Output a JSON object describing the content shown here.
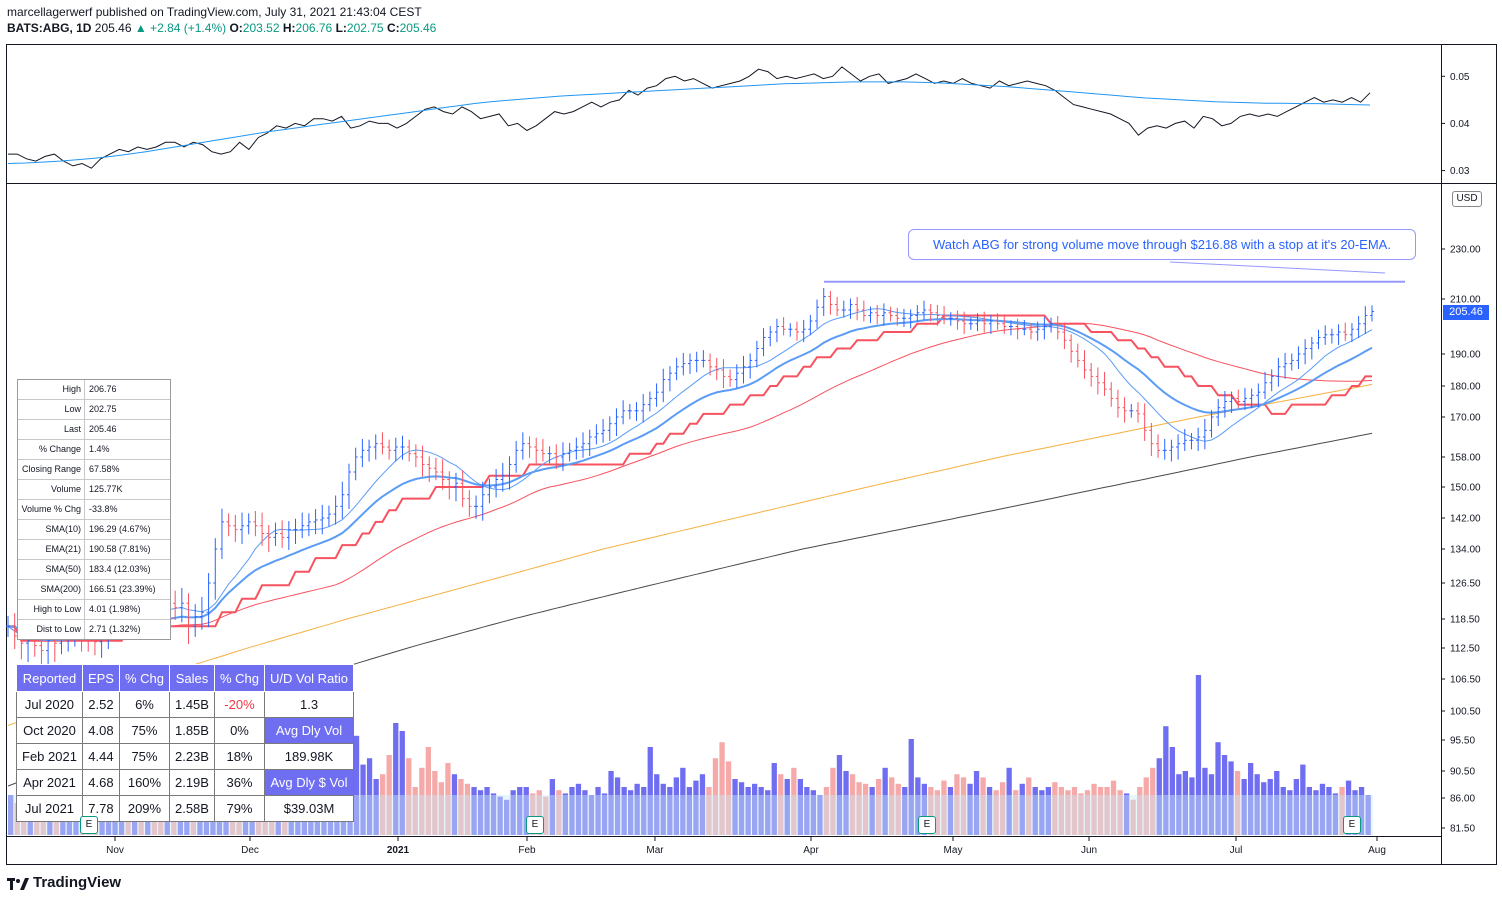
{
  "header": {
    "line1": "marcellagerwerf published on TradingView.com, July 31, 2021 21:43:04 CEST",
    "symbol": "BATS:ABG, 1D",
    "last": "205.46",
    "change": "▲ +2.84 (+1.4%)",
    "open_label": "O:",
    "open": "203.52",
    "high_label": "H:",
    "high": "206.76",
    "low_label": "L:",
    "low": "202.75",
    "close_label": "C:",
    "close": "205.46"
  },
  "stats_panel": [
    {
      "label": "High",
      "value": "206.76"
    },
    {
      "label": "Low",
      "value": "202.75"
    },
    {
      "label": "Last",
      "value": "205.46"
    },
    {
      "label": "% Change",
      "value": "1.4%"
    },
    {
      "label": "Closing Range",
      "value": "67.58%"
    },
    {
      "label": "Volume",
      "value": "125.77K"
    },
    {
      "label": "Volume % Chg",
      "value": "-33.8%"
    },
    {
      "label": "SMA(10)",
      "value": "196.29 (4.67%)"
    },
    {
      "label": "EMA(21)",
      "value": "190.58 (7.81%)"
    },
    {
      "label": "SMA(50)",
      "value": "183.4 (12.03%)"
    },
    {
      "label": "SMA(200)",
      "value": "166.51 (23.39%)"
    },
    {
      "label": "High to Low",
      "value": "4.01 (1.98%)"
    },
    {
      "label": "Dist to Low",
      "value": "2.71 (1.32%)"
    }
  ],
  "earnings_table": {
    "headers": [
      "Reported",
      "EPS",
      "% Chg",
      "Sales",
      "% Chg",
      "U/D Vol Ratio"
    ],
    "rows": [
      [
        "Jul 2020",
        "2.52",
        "6%",
        "1.45B",
        "-20%",
        "1.3"
      ],
      [
        "Oct 2020",
        "4.08",
        "75%",
        "1.85B",
        "0%",
        "Avg Dly Vol"
      ],
      [
        "Feb 2021",
        "4.44",
        "75%",
        "2.23B",
        "18%",
        "189.98K"
      ],
      [
        "Apr 2021",
        "4.68",
        "160%",
        "2.19B",
        "36%",
        "Avg Dly $ Vol"
      ],
      [
        "Jul 2021",
        "7.78",
        "209%",
        "2.58B",
        "79%",
        "$39.03M"
      ]
    ]
  },
  "annotation": "Watch ABG for strong volume move through $216.88 with a stop at it's 20-EMA.",
  "currency_badge": "USD",
  "price_tag": "205.46",
  "earnings_badge": "E",
  "brand": "TradingView",
  "colors": {
    "up": "#2962ff",
    "down": "#f7525f",
    "ema_fast": "#5b9cf6",
    "rs_line": "#f7525f",
    "sma150": "#f5b041",
    "sma200": "#4a4a4a",
    "rs_avg": "#2196f3",
    "vol_up": "#6f6ef0",
    "vol_down": "#f5a9a9"
  },
  "chart_data": [
    {
      "type": "line",
      "title": "Ratio panel",
      "y_ticks": [
        "0.05",
        "0.04",
        "0.03"
      ],
      "ylim": [
        0.028,
        0.056
      ],
      "series": [],
      "ratio_points": [
        0.0335,
        0.0335,
        0.0325,
        0.032,
        0.033,
        0.0335,
        0.032,
        0.031,
        0.0315,
        0.0305,
        0.0325,
        0.0335,
        0.0345,
        0.034,
        0.035,
        0.0345,
        0.035,
        0.036,
        0.036,
        0.035,
        0.036,
        0.0355,
        0.034,
        0.0335,
        0.034,
        0.036,
        0.0345,
        0.037,
        0.038,
        0.0395,
        0.039,
        0.04,
        0.0395,
        0.041,
        0.041,
        0.0405,
        0.0415,
        0.039,
        0.0395,
        0.0405,
        0.04,
        0.04,
        0.039,
        0.04,
        0.0415,
        0.043,
        0.0435,
        0.0425,
        0.042,
        0.0435,
        0.0425,
        0.041,
        0.0415,
        0.042,
        0.0395,
        0.04,
        0.0385,
        0.0395,
        0.041,
        0.0425,
        0.042,
        0.0425,
        0.0435,
        0.0445,
        0.0435,
        0.0445,
        0.045,
        0.047,
        0.046,
        0.0475,
        0.048,
        0.0495,
        0.05,
        0.049,
        0.0495,
        0.0485,
        0.0475,
        0.048,
        0.0485,
        0.049,
        0.05,
        0.0515,
        0.051,
        0.0495,
        0.05,
        0.0495,
        0.05,
        0.0505,
        0.0495,
        0.05,
        0.052,
        0.0505,
        0.049,
        0.05,
        0.0505,
        0.0485,
        0.049,
        0.0495,
        0.0505,
        0.0495,
        0.0485,
        0.049,
        0.0485,
        0.0495,
        0.0485,
        0.048,
        0.0475,
        0.049,
        0.048,
        0.0485,
        0.049,
        0.0485,
        0.048,
        0.047,
        0.0455,
        0.044,
        0.0435,
        0.043,
        0.0425,
        0.042,
        0.041,
        0.04,
        0.0375,
        0.039,
        0.0395,
        0.039,
        0.04,
        0.0405,
        0.039,
        0.0415,
        0.041,
        0.0395,
        0.04,
        0.0415,
        0.042,
        0.0415,
        0.042,
        0.0415,
        0.0425,
        0.0435,
        0.0445,
        0.0455,
        0.0445,
        0.045,
        0.0445,
        0.0455,
        0.0445,
        0.0465
      ],
      "ratio_ma": [
        0.0315,
        0.0316,
        0.0318,
        0.032,
        0.0323,
        0.0326,
        0.033,
        0.0335,
        0.034,
        0.0346,
        0.0352,
        0.0358,
        0.0364,
        0.037,
        0.0376,
        0.0382,
        0.0387,
        0.0392,
        0.0397,
        0.0402,
        0.0407,
        0.0412,
        0.0417,
        0.0422,
        0.0427,
        0.0432,
        0.0437,
        0.0442,
        0.0446,
        0.0449,
        0.0452,
        0.0455,
        0.0458,
        0.046,
        0.0462,
        0.0464,
        0.0466,
        0.0468,
        0.047,
        0.0472,
        0.0474,
        0.0476,
        0.0478,
        0.048,
        0.0482,
        0.0484,
        0.0485,
        0.0486,
        0.0487,
        0.0488,
        0.0488,
        0.0488,
        0.0488,
        0.0487,
        0.0486,
        0.0484,
        0.0482,
        0.048,
        0.0478,
        0.0475,
        0.0472,
        0.0469,
        0.0466,
        0.0463,
        0.046,
        0.0457,
        0.0454,
        0.0452,
        0.045,
        0.0448,
        0.0446,
        0.0445,
        0.0444,
        0.0443,
        0.0443,
        0.0442,
        0.0442,
        0.0441,
        0.044,
        0.0439
      ]
    },
    {
      "type": "line",
      "title": "Price panel (bars with moving averages)",
      "y_ticks": [
        "230.00",
        "210.00",
        "190.00",
        "180.00",
        "170.00",
        "158.00",
        "150.00",
        "142.00",
        "134.00",
        "126.50",
        "118.50",
        "112.50",
        "106.50",
        "100.50",
        "95.50",
        "90.50",
        "86.00",
        "81.50"
      ],
      "x_ticks": [
        "Nov",
        "Dec",
        "2021",
        "Feb",
        "Mar",
        "Apr",
        "May",
        "Jun",
        "Jul",
        "Aug"
      ],
      "ylim": [
        79,
        245
      ],
      "resistance_level": 216.88,
      "closes": [
        117,
        115,
        113.5,
        114,
        113,
        112,
        114,
        113.5,
        114.5,
        116,
        116.5,
        115.5,
        114,
        113.8,
        116,
        118,
        120,
        122,
        121,
        122.5,
        120.5,
        121.5,
        120,
        118,
        122,
        121,
        122,
        117,
        119,
        120,
        126.5,
        134,
        141,
        140,
        139,
        140,
        141,
        140,
        138,
        137,
        138,
        137,
        139,
        139,
        140,
        141,
        141.5,
        142,
        143,
        145,
        148,
        154,
        158,
        160,
        161,
        162,
        161,
        160,
        161,
        161,
        159,
        158,
        156,
        155,
        154,
        152,
        150,
        151,
        147,
        145,
        145,
        148,
        150,
        152,
        153,
        156,
        160,
        162,
        161,
        160,
        159,
        159,
        158,
        159,
        160,
        161,
        162,
        164,
        165,
        166,
        168,
        170,
        172,
        172,
        172,
        174,
        176,
        178,
        182,
        184,
        186,
        187,
        188,
        188,
        188,
        186,
        185,
        183,
        182,
        184,
        186,
        188,
        192,
        196,
        198,
        200,
        199,
        199,
        198,
        199,
        202,
        207,
        211,
        208,
        206,
        206,
        208,
        206,
        204,
        205,
        204,
        205,
        204,
        203,
        203,
        204,
        205,
        206,
        205,
        204,
        203,
        203,
        202,
        201,
        201,
        202,
        201,
        202,
        201,
        200,
        200,
        199,
        199,
        198,
        199,
        200,
        201,
        198,
        195,
        191,
        188,
        185,
        183,
        181,
        179,
        176,
        173,
        172,
        172,
        171,
        166,
        162,
        160,
        160,
        161,
        162,
        163,
        163,
        164,
        166,
        170,
        173,
        175,
        176,
        175,
        176,
        177,
        178,
        181,
        183,
        186,
        187,
        188,
        190,
        192,
        194,
        196,
        197,
        197,
        198,
        197,
        199,
        201,
        204,
        205.46
      ],
      "ema21_end": 190.58,
      "sma10_end": 196.29,
      "sma50_end": 183.4,
      "sma200_end": 166.51
    },
    {
      "type": "bar",
      "title": "Volume",
      "values": [
        0.25,
        0.2,
        0.22,
        0.3,
        0.18,
        0.28,
        0.25,
        0.22,
        0.2,
        0.26,
        0.3,
        0.22,
        0.24,
        0.28,
        0.21,
        0.26,
        0.3,
        0.34,
        0.28,
        0.24,
        0.26,
        0.33,
        0.27,
        0.25,
        0.22,
        0.28,
        0.3,
        0.26,
        0.4,
        0.38,
        0.3,
        0.28,
        0.26,
        0.3,
        0.27,
        0.29,
        0.26,
        0.24,
        0.26,
        0.28,
        0.3,
        0.26,
        0.28,
        0.32,
        0.3,
        0.38,
        0.28,
        0.26,
        0.29,
        0.3,
        0.35,
        0.42,
        0.52,
        0.62,
        0.44,
        0.48,
        0.35,
        0.38,
        0.5,
        0.7,
        0.65,
        0.48,
        0.3,
        0.42,
        0.55,
        0.4,
        0.33,
        0.45,
        0.38,
        0.35,
        0.32,
        0.3,
        0.28,
        0.3,
        0.26,
        0.24,
        0.22,
        0.28,
        0.3,
        0.3,
        0.26,
        0.28,
        0.24,
        0.35,
        0.28,
        0.26,
        0.3,
        0.32,
        0.28,
        0.25,
        0.3,
        0.26,
        0.4,
        0.36,
        0.3,
        0.28,
        0.32,
        0.3,
        0.55,
        0.38,
        0.32,
        0.3,
        0.36,
        0.42,
        0.3,
        0.34,
        0.38,
        0.3,
        0.48,
        0.58,
        0.46,
        0.35,
        0.33,
        0.3,
        0.32,
        0.3,
        0.28,
        0.45,
        0.38,
        0.35,
        0.42,
        0.35,
        0.3,
        0.28,
        0.25,
        0.3,
        0.42,
        0.5,
        0.4,
        0.38,
        0.33,
        0.32,
        0.3,
        0.35,
        0.42,
        0.36,
        0.32,
        0.3,
        0.6,
        0.36,
        0.32,
        0.3,
        0.28,
        0.34,
        0.3,
        0.38,
        0.36,
        0.32,
        0.4,
        0.36,
        0.3,
        0.28,
        0.33,
        0.42,
        0.28,
        0.32,
        0.36,
        0.3,
        0.28,
        0.3,
        0.33,
        0.3,
        0.28,
        0.3,
        0.26,
        0.28,
        0.32,
        0.3,
        0.3,
        0.34,
        0.28,
        0.26,
        0.22,
        0.3,
        0.36,
        0.42,
        0.48,
        0.68,
        0.55,
        0.38,
        0.4,
        0.36,
        1.0,
        0.42,
        0.38,
        0.58,
        0.5,
        0.46,
        0.4,
        0.35,
        0.45,
        0.38,
        0.33,
        0.35,
        0.4,
        0.3,
        0.28,
        0.35,
        0.44,
        0.3,
        0.28,
        0.32,
        0.3,
        0.26,
        0.3,
        0.34,
        0.28,
        0.3,
        0.25
      ]
    }
  ]
}
